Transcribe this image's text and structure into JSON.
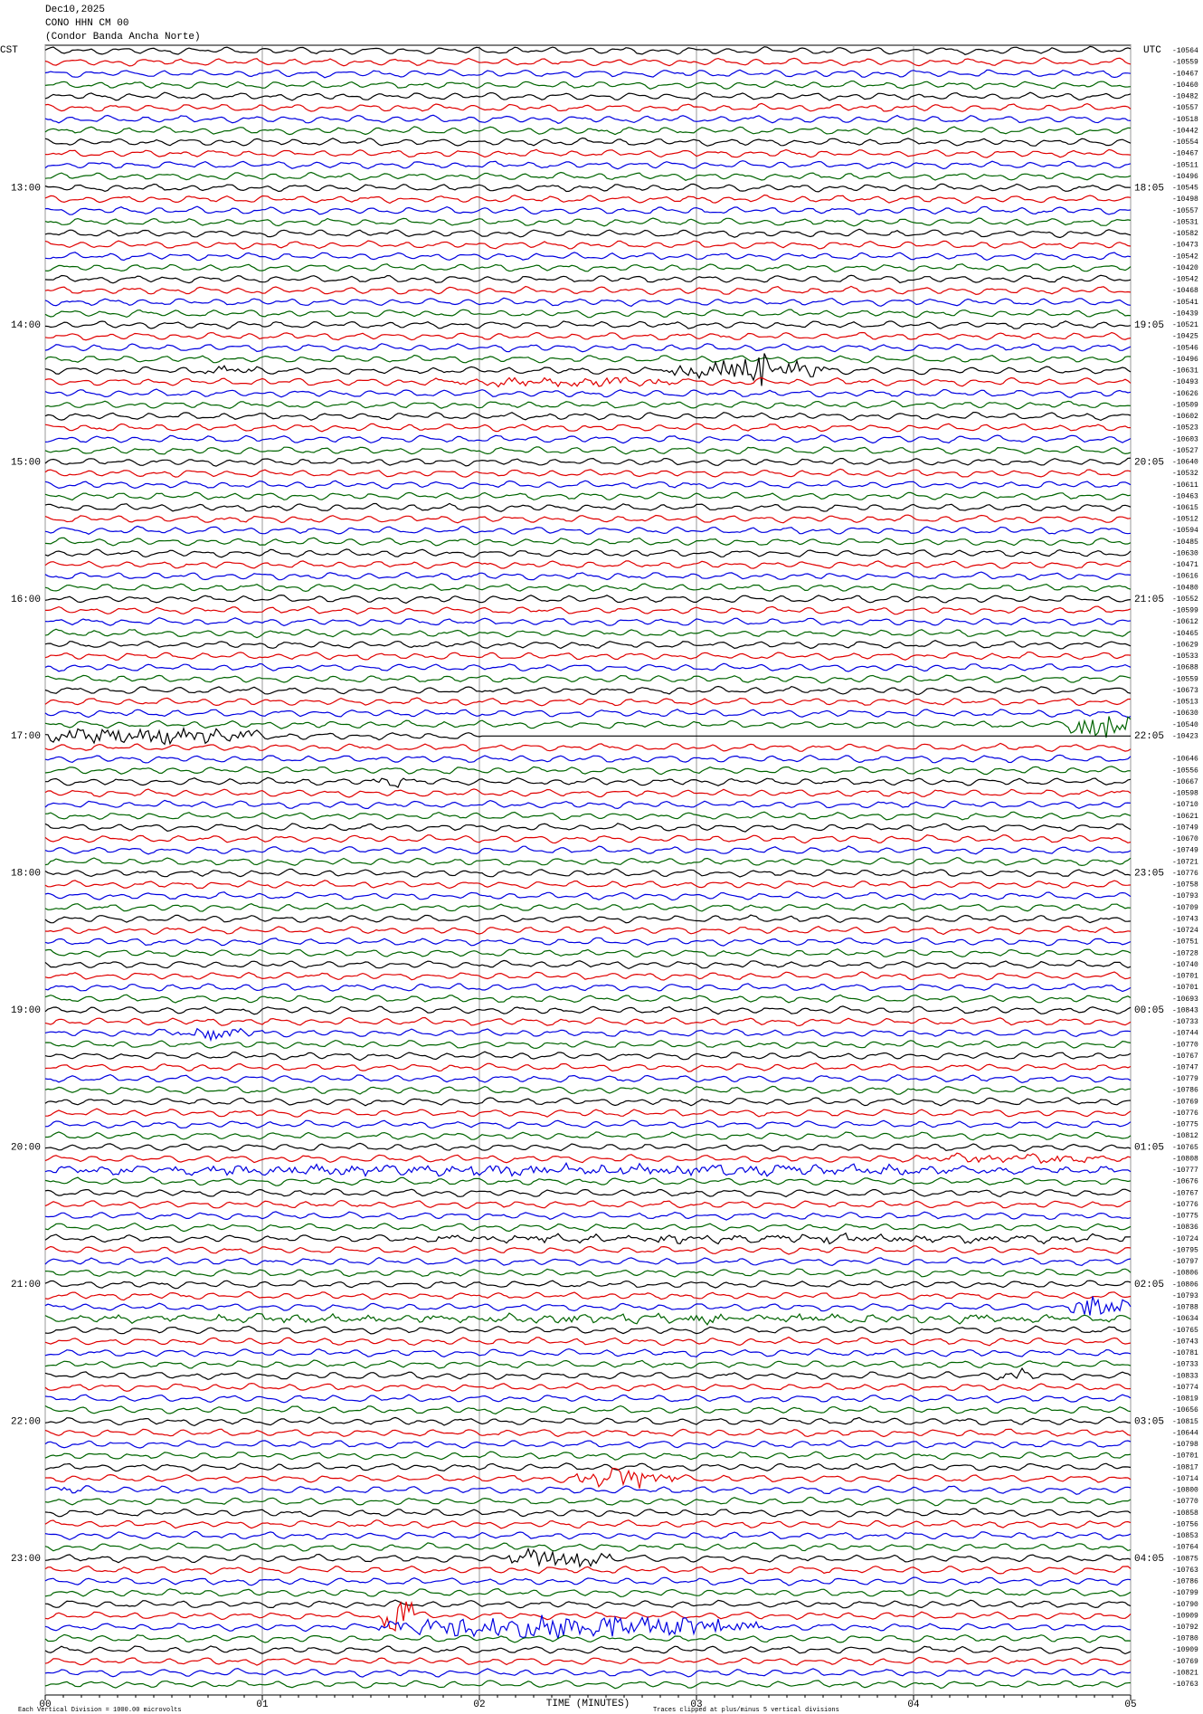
{
  "chart_data": {
    "type": "helicorder",
    "title": [
      "Dec10,2025",
      "CONO HHN CM 00",
      "(Condor Banda Ancha Norte)"
    ],
    "left_header": "CST",
    "right_header": "UTC",
    "left_hours": [
      "13:00",
      "14:00",
      "15:00",
      "16:00",
      "17:00",
      "18:00",
      "19:00",
      "20:00",
      "21:00",
      "22:00",
      "23:00"
    ],
    "right_hours": [
      "18:05",
      "19:05",
      "20:05",
      "21:05",
      "22:05",
      "23:05",
      "00:05",
      "01:05",
      "02:05",
      "03:05",
      "04:05"
    ],
    "trace_labels": [
      -10564,
      -10559,
      -10467,
      -10460,
      -10482,
      -10557,
      -10518,
      -10442,
      -10554,
      -10467,
      -10511,
      -10496,
      -10545,
      -10498,
      -10557,
      -10531,
      -10582,
      -10473,
      -10542,
      -10420,
      -10542,
      -10468,
      -10541,
      -10439,
      -10521,
      -10425,
      -10546,
      -10496,
      -10631,
      -10493,
      -10626,
      -10509,
      -10602,
      -10523,
      -10603,
      -10527,
      -10640,
      -10532,
      -10611,
      -10463,
      -10615,
      -10512,
      -10594,
      -10485,
      -10630,
      -10471,
      -10616,
      -10480,
      -10552,
      -10599,
      -10612,
      -10465,
      -10629,
      -10533,
      -10688,
      -10559,
      -10673,
      -10513,
      -10630,
      -10540,
      -10423,
      null,
      -10646,
      -10556,
      -10667,
      -10598,
      -10710,
      -10621,
      -10749,
      -10670,
      -10749,
      -10721,
      -10776,
      -10758,
      -10793,
      -10709,
      -10743,
      -10724,
      -10751,
      -10728,
      -10740,
      -10701,
      -10701,
      -10693,
      -10843,
      -10733,
      -10744,
      -10770,
      -10767,
      -10747,
      -10779,
      -10786,
      -10769,
      -10776,
      -10775,
      -10812,
      -10765,
      -10808,
      -10777,
      -10676,
      -10767,
      -10776,
      -10775,
      -10836,
      -10724,
      -10795,
      -10797,
      -10806,
      -10806,
      -10793,
      -10788,
      -10634,
      -10765,
      -10743,
      -10781,
      -10733,
      -10833,
      -10774,
      -10819,
      -10656,
      -10815,
      -10644,
      -10798,
      -10701,
      -10817,
      -10714,
      -10800,
      -10770,
      -10858,
      -10756,
      -10853,
      -10764,
      -10875,
      -10763,
      -10786,
      -10799,
      -10790,
      -10909,
      -10792,
      -10780,
      -10909,
      -10769,
      -10821,
      -10763
    ],
    "trace_colors": [
      "#000000",
      "#e00000",
      "#0000e0",
      "#006400"
    ],
    "xlim": [
      0,
      5
    ],
    "xticks": [
      {
        "value": 0,
        "label": "00"
      },
      {
        "value": 1,
        "label": "01"
      },
      {
        "value": 2,
        "label": "02"
      },
      {
        "value": 3,
        "label": "03"
      },
      {
        "value": 4,
        "label": "04"
      },
      {
        "value": 5,
        "label": "05"
      }
    ],
    "xlabel": "TIME (MINUTES)",
    "scale_note": "Each Vertical Division = 1000.00 microvolts",
    "clip_note": "Traces clipped at plus/minus 5 vertical divisions",
    "grid": true
  }
}
